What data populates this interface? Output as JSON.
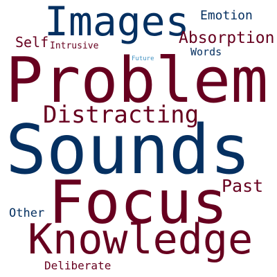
{
  "word_cloud": {
    "colors": {
      "dark_red": "#67001f",
      "dark_blue": "#053061",
      "light_blue": "#4393c3"
    },
    "words": [
      {
        "id": "sounds",
        "text": "Sounds",
        "color": "dark_blue"
      },
      {
        "id": "problem",
        "text": "Problem",
        "color": "dark_red"
      },
      {
        "id": "focus",
        "text": "Focus",
        "color": "dark_red"
      },
      {
        "id": "knowledge",
        "text": "Knowledge",
        "color": "dark_red"
      },
      {
        "id": "images",
        "text": "Images",
        "color": "dark_blue"
      },
      {
        "id": "distracting",
        "text": "Distracting",
        "color": "dark_red"
      },
      {
        "id": "absorption",
        "text": "Absorption",
        "color": "dark_red"
      },
      {
        "id": "past",
        "text": "Past",
        "color": "dark_red"
      },
      {
        "id": "emotion",
        "text": "Emotion",
        "color": "dark_blue"
      },
      {
        "id": "self",
        "text": "Self",
        "color": "dark_red"
      },
      {
        "id": "deliberate",
        "text": "Deliberate",
        "color": "dark_red"
      },
      {
        "id": "other",
        "text": "Other",
        "color": "dark_blue"
      },
      {
        "id": "words",
        "text": "Words",
        "color": "dark_blue"
      },
      {
        "id": "intrusive",
        "text": "Intrusive",
        "color": "dark_red"
      },
      {
        "id": "future",
        "text": "Future",
        "color": "light_blue"
      }
    ]
  }
}
